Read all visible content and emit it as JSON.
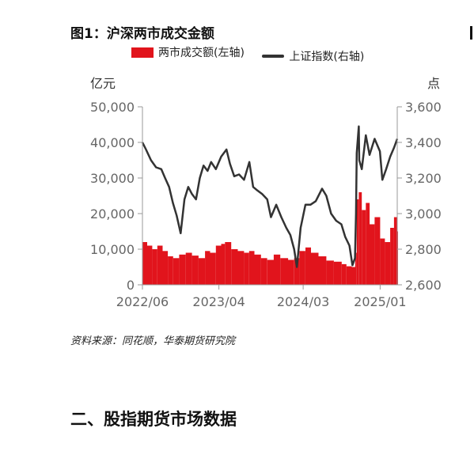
{
  "figure": {
    "title": "图1：沪深两市成交金额",
    "source": "资料来源：同花顺，华泰期货研究院"
  },
  "section_heading": "二、股指期货市场数据",
  "colors": {
    "bar": "#e1141c",
    "line": "#333333",
    "axis": "#999999",
    "tick_text": "#666666"
  },
  "chart_data": {
    "type": "bar",
    "legend": {
      "placement": "top",
      "items": [
        "两市成交额(左轴)",
        "上证指数(右轴)"
      ]
    },
    "x": {
      "range": [
        "2022-06-01",
        "2025-03-10"
      ],
      "ticks": [
        {
          "date": "2022-06-01",
          "label": "2022/06"
        },
        {
          "date": "2023-04-01",
          "label": "2023/04"
        },
        {
          "date": "2024-03-01",
          "label": "2024/03"
        },
        {
          "date": "2025-01-01",
          "label": "2025/01"
        }
      ]
    },
    "y_left": {
      "label": "亿元",
      "range": [
        0,
        50000
      ],
      "ticks": [
        0,
        10000,
        20000,
        30000,
        40000,
        50000
      ],
      "tick_labels": [
        "0",
        "10,000",
        "20,000",
        "30,000",
        "40,000",
        "50,000"
      ]
    },
    "y_right": {
      "label": "点",
      "range": [
        2600,
        3600
      ],
      "ticks": [
        2600,
        2800,
        3000,
        3200,
        3400,
        3600
      ],
      "tick_labels": [
        "2,600",
        "2,800",
        "3,000",
        "3,200",
        "3,400",
        "3,600"
      ]
    },
    "grid": false,
    "series": [
      {
        "name": "两市成交额(左轴)",
        "type": "bar",
        "axis": "left",
        "points": [
          [
            "2022-06-01",
            12000
          ],
          [
            "2022-06-20",
            11000
          ],
          [
            "2022-07-10",
            10000
          ],
          [
            "2022-07-30",
            11000
          ],
          [
            "2022-08-20",
            9500
          ],
          [
            "2022-09-10",
            8000
          ],
          [
            "2022-10-01",
            7500
          ],
          [
            "2022-10-25",
            8500
          ],
          [
            "2022-11-20",
            9000
          ],
          [
            "2022-12-15",
            8200
          ],
          [
            "2023-01-10",
            7500
          ],
          [
            "2023-02-05",
            9500
          ],
          [
            "2023-02-25",
            9000
          ],
          [
            "2023-03-20",
            11000
          ],
          [
            "2023-04-10",
            11500
          ],
          [
            "2023-04-25",
            12000
          ],
          [
            "2023-05-20",
            10000
          ],
          [
            "2023-06-15",
            9500
          ],
          [
            "2023-07-10",
            9000
          ],
          [
            "2023-07-30",
            9500
          ],
          [
            "2023-08-20",
            8500
          ],
          [
            "2023-09-15",
            7500
          ],
          [
            "2023-10-10",
            7000
          ],
          [
            "2023-11-05",
            8500
          ],
          [
            "2023-12-01",
            7500
          ],
          [
            "2024-01-01",
            7000
          ],
          [
            "2024-01-25",
            7500
          ],
          [
            "2024-02-15",
            9500
          ],
          [
            "2024-03-10",
            10500
          ],
          [
            "2024-04-01",
            9000
          ],
          [
            "2024-05-01",
            8000
          ],
          [
            "2024-06-01",
            6800
          ],
          [
            "2024-07-01",
            6500
          ],
          [
            "2024-08-01",
            5800
          ],
          [
            "2024-08-20",
            5200
          ],
          [
            "2024-09-10",
            5000
          ],
          [
            "2024-09-24",
            9000
          ],
          [
            "2024-09-30",
            24000
          ],
          [
            "2024-10-08",
            26000
          ],
          [
            "2024-10-20",
            21000
          ],
          [
            "2024-11-05",
            23000
          ],
          [
            "2024-11-20",
            17000
          ],
          [
            "2024-12-10",
            19000
          ],
          [
            "2025-01-01",
            13000
          ],
          [
            "2025-01-20",
            12000
          ],
          [
            "2025-02-10",
            16000
          ],
          [
            "2025-02-25",
            19000
          ],
          [
            "2025-03-10",
            15000
          ]
        ]
      },
      {
        "name": "上证指数(右轴)",
        "type": "line",
        "axis": "right",
        "points": [
          [
            "2022-06-01",
            3400
          ],
          [
            "2022-06-15",
            3360
          ],
          [
            "2022-07-05",
            3300
          ],
          [
            "2022-07-25",
            3260
          ],
          [
            "2022-08-15",
            3250
          ],
          [
            "2022-08-30",
            3200
          ],
          [
            "2022-09-15",
            3150
          ],
          [
            "2022-09-30",
            3060
          ],
          [
            "2022-10-15",
            2990
          ],
          [
            "2022-10-31",
            2890
          ],
          [
            "2022-11-15",
            3080
          ],
          [
            "2022-11-30",
            3150
          ],
          [
            "2022-12-15",
            3110
          ],
          [
            "2022-12-31",
            3080
          ],
          [
            "2023-01-15",
            3200
          ],
          [
            "2023-01-30",
            3270
          ],
          [
            "2023-02-15",
            3240
          ],
          [
            "2023-03-01",
            3290
          ],
          [
            "2023-03-20",
            3250
          ],
          [
            "2023-04-10",
            3320
          ],
          [
            "2023-05-01",
            3360
          ],
          [
            "2023-05-15",
            3280
          ],
          [
            "2023-06-01",
            3210
          ],
          [
            "2023-06-20",
            3220
          ],
          [
            "2023-07-10",
            3190
          ],
          [
            "2023-07-31",
            3290
          ],
          [
            "2023-08-15",
            3150
          ],
          [
            "2023-09-01",
            3130
          ],
          [
            "2023-09-20",
            3110
          ],
          [
            "2023-10-10",
            3080
          ],
          [
            "2023-10-25",
            2980
          ],
          [
            "2023-11-15",
            3050
          ],
          [
            "2023-12-05",
            2980
          ],
          [
            "2023-12-25",
            2920
          ],
          [
            "2024-01-10",
            2880
          ],
          [
            "2024-01-25",
            2800
          ],
          [
            "2024-02-05",
            2700
          ],
          [
            "2024-02-20",
            2920
          ],
          [
            "2024-03-10",
            3050
          ],
          [
            "2024-03-30",
            3050
          ],
          [
            "2024-04-20",
            3070
          ],
          [
            "2024-05-15",
            3140
          ],
          [
            "2024-06-01",
            3100
          ],
          [
            "2024-06-20",
            3000
          ],
          [
            "2024-07-10",
            2960
          ],
          [
            "2024-07-31",
            2940
          ],
          [
            "2024-08-15",
            2870
          ],
          [
            "2024-09-01",
            2820
          ],
          [
            "2024-09-13",
            2710
          ],
          [
            "2024-09-23",
            2750
          ],
          [
            "2024-09-27",
            3000
          ],
          [
            "2024-09-30",
            3340
          ],
          [
            "2024-10-08",
            3490
          ],
          [
            "2024-10-10",
            3300
          ],
          [
            "2024-10-20",
            3250
          ],
          [
            "2024-11-05",
            3440
          ],
          [
            "2024-11-20",
            3330
          ],
          [
            "2024-12-10",
            3420
          ],
          [
            "2024-12-31",
            3350
          ],
          [
            "2025-01-10",
            3190
          ],
          [
            "2025-01-25",
            3250
          ],
          [
            "2025-02-10",
            3320
          ],
          [
            "2025-02-25",
            3370
          ],
          [
            "2025-03-10",
            3420
          ]
        ]
      }
    ]
  }
}
